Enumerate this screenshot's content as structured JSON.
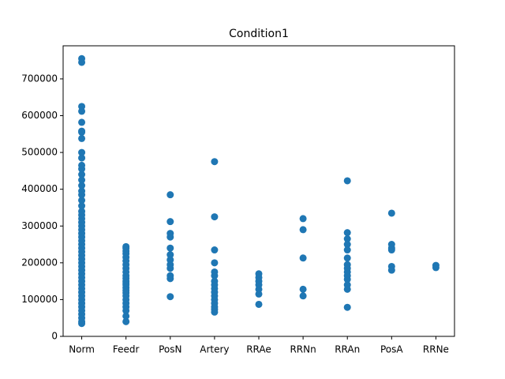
{
  "chart_data": {
    "type": "strip",
    "title": "Condition1",
    "categories": [
      "Norm",
      "Feedr",
      "PosN",
      "Artery",
      "RRAe",
      "RRNn",
      "RRAn",
      "PosA",
      "RRNe"
    ],
    "values": [
      [
        35000,
        40000,
        50000,
        60000,
        70000,
        80000,
        90000,
        100000,
        110000,
        120000,
        130000,
        140000,
        150000,
        160000,
        170000,
        180000,
        190000,
        200000,
        210000,
        220000,
        230000,
        240000,
        250000,
        260000,
        270000,
        280000,
        290000,
        300000,
        310000,
        320000,
        330000,
        340000,
        355000,
        370000,
        385000,
        395000,
        410000,
        425000,
        440000,
        455000,
        465000,
        485000,
        500000,
        538000,
        555000,
        558000,
        582000,
        612000,
        625000,
        745000,
        755000
      ],
      [
        40000,
        55000,
        70000,
        80000,
        90000,
        100000,
        110000,
        118000,
        125000,
        132000,
        140000,
        145000,
        150000,
        158000,
        165000,
        175000,
        185000,
        195000,
        205000,
        215000,
        225000,
        232000,
        240000,
        244000
      ],
      [
        385000,
        312000,
        280000,
        270000,
        240000,
        222000,
        208000,
        195000,
        185000,
        165000,
        157000,
        108000
      ],
      [
        475000,
        325000,
        235000,
        200000,
        175000,
        165000,
        150000,
        140000,
        130000,
        120000,
        110000,
        100000,
        90000,
        80000,
        73000,
        66000
      ],
      [
        170000,
        160000,
        150000,
        140000,
        128000,
        115000,
        87000
      ],
      [
        320000,
        290000,
        213000,
        128000,
        110000
      ],
      [
        423000,
        282000,
        265000,
        250000,
        235000,
        213000,
        195000,
        185000,
        175000,
        165000,
        155000,
        140000,
        128000,
        79000
      ],
      [
        335000,
        250000,
        240000,
        235000,
        190000,
        180000
      ],
      [
        193000,
        187000
      ]
    ],
    "color": "#1f77b4",
    "ylim": [
      0,
      790000
    ],
    "yticks": [
      0,
      100000,
      200000,
      300000,
      400000,
      500000,
      600000,
      700000
    ]
  }
}
